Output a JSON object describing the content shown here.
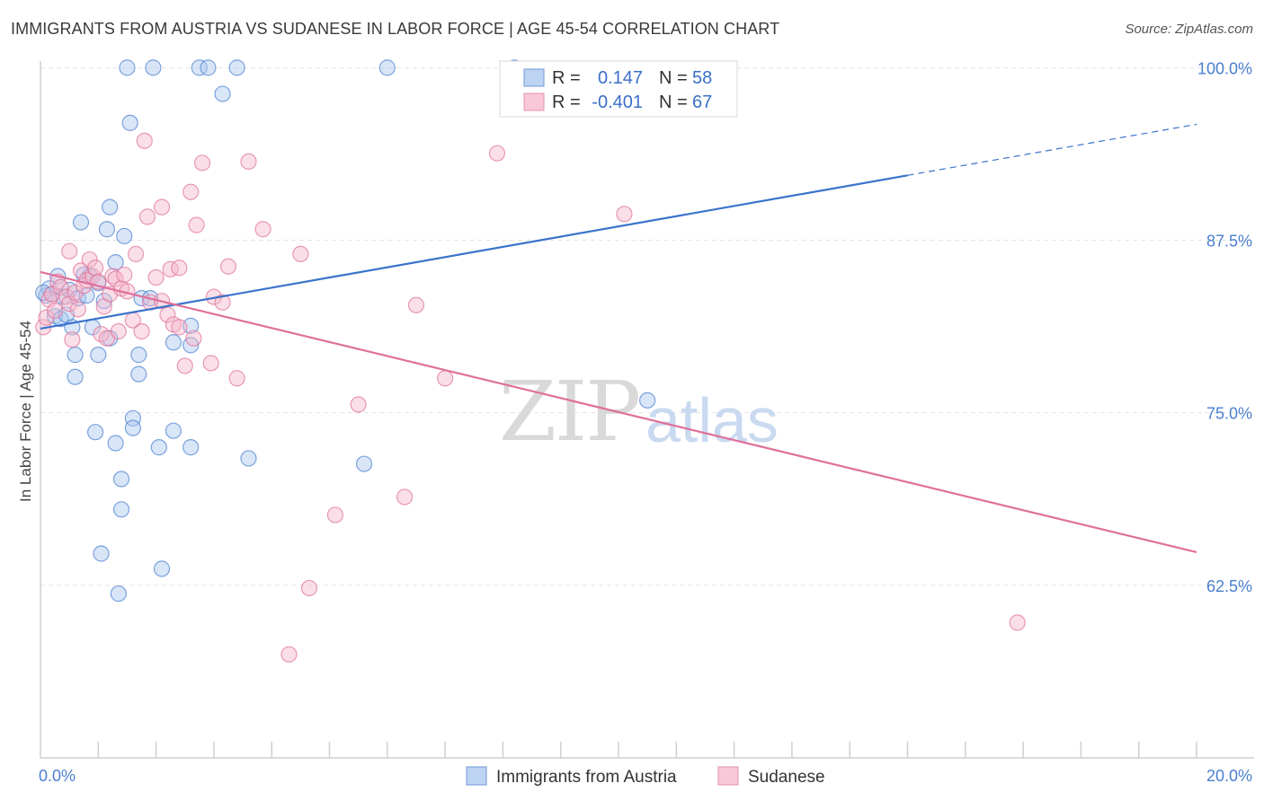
{
  "title": "IMMIGRANTS FROM AUSTRIA VS SUDANESE IN LABOR FORCE | AGE 45-54 CORRELATION CHART",
  "source": "Source: ZipAtlas.com",
  "watermark": {
    "zip": "ZIP",
    "atlas": "atlas"
  },
  "colors": {
    "blue": "#4a7fcf",
    "blue_fill": "#aac7ef",
    "pink": "#e07098",
    "pink_fill": "#f5b8cc",
    "grid": "#e3e3e3"
  },
  "legend_box": {
    "rows": [
      {
        "r_label": "R =",
        "r_value": "0.147",
        "n_label": "N =",
        "n_value": "58",
        "color": "blue"
      },
      {
        "r_label": "R =",
        "r_value": "-0.401",
        "n_label": "N =",
        "n_value": "67",
        "color": "pink"
      }
    ]
  },
  "bottom_legend": [
    {
      "label": "Immigrants from Austria",
      "color": "blue"
    },
    {
      "label": "Sudanese",
      "color": "pink"
    }
  ],
  "chart_data": {
    "type": "scatter",
    "title": "IMMIGRANTS FROM AUSTRIA VS SUDANESE IN LABOR FORCE | AGE 45-54 CORRELATION CHART",
    "xlabel": "",
    "ylabel": "In Labor Force | Age 45-54",
    "xlim": [
      0,
      20
    ],
    "ylim": [
      50,
      101
    ],
    "x_tick_labels": [
      {
        "value": 0,
        "label": "0.0%"
      },
      {
        "value": 20,
        "label": "20.0%"
      }
    ],
    "y_ticks": [
      {
        "value": 100,
        "label": "100.0%"
      },
      {
        "value": 87.5,
        "label": "87.5%"
      },
      {
        "value": 75,
        "label": "75.0%"
      },
      {
        "value": 62.5,
        "label": "62.5%"
      }
    ],
    "grid": true,
    "legend_position": "bottom",
    "series": [
      {
        "name": "Immigrants from Austria",
        "color": "blue",
        "trend": {
          "x0": 0,
          "y0": 81.1,
          "x1": 15,
          "y1": 92.2,
          "dashed_to_x": 20,
          "dashed_to_y": 95.9
        },
        "points": [
          [
            0.1,
            83.5
          ],
          [
            0.15,
            84.0
          ],
          [
            0.2,
            83.6
          ],
          [
            0.25,
            82.0
          ],
          [
            0.3,
            84.9
          ],
          [
            0.35,
            81.8
          ],
          [
            0.4,
            83.4
          ],
          [
            0.45,
            82.1
          ],
          [
            0.5,
            83.9
          ],
          [
            0.55,
            81.2
          ],
          [
            0.6,
            77.6
          ],
          [
            0.6,
            79.2
          ],
          [
            0.65,
            83.3
          ],
          [
            0.7,
            88.8
          ],
          [
            0.75,
            85.0
          ],
          [
            0.8,
            83.5
          ],
          [
            0.85,
            84.9
          ],
          [
            0.9,
            81.2
          ],
          [
            0.95,
            73.6
          ],
          [
            1.0,
            84.4
          ],
          [
            1.0,
            79.2
          ],
          [
            1.05,
            64.8
          ],
          [
            1.1,
            83.1
          ],
          [
            1.15,
            88.3
          ],
          [
            1.2,
            89.9
          ],
          [
            1.2,
            80.4
          ],
          [
            1.3,
            85.9
          ],
          [
            1.3,
            72.8
          ],
          [
            1.35,
            61.9
          ],
          [
            1.4,
            68.0
          ],
          [
            1.4,
            70.2
          ],
          [
            1.45,
            87.8
          ],
          [
            1.5,
            100
          ],
          [
            1.55,
            96.0
          ],
          [
            1.6,
            74.6
          ],
          [
            1.6,
            73.9
          ],
          [
            1.7,
            77.8
          ],
          [
            1.7,
            79.2
          ],
          [
            1.75,
            83.3
          ],
          [
            1.9,
            83.3
          ],
          [
            1.95,
            100
          ],
          [
            2.05,
            72.5
          ],
          [
            2.1,
            63.7
          ],
          [
            2.3,
            73.7
          ],
          [
            2.3,
            80.1
          ],
          [
            2.6,
            81.3
          ],
          [
            2.6,
            79.9
          ],
          [
            2.6,
            72.5
          ],
          [
            2.75,
            100
          ],
          [
            2.9,
            100
          ],
          [
            3.15,
            98.1
          ],
          [
            3.4,
            100
          ],
          [
            3.6,
            71.7
          ],
          [
            5.6,
            71.3
          ],
          [
            6.0,
            100
          ],
          [
            8.2,
            100
          ],
          [
            10.5,
            75.9
          ],
          [
            0.05,
            83.7
          ]
        ]
      },
      {
        "name": "Sudanese",
        "color": "pink",
        "trend": {
          "x0": 0,
          "y0": 85.2,
          "x1": 20,
          "y1": 64.9
        },
        "points": [
          [
            0.05,
            81.2
          ],
          [
            0.1,
            81.9
          ],
          [
            0.15,
            83.2
          ],
          [
            0.2,
            83.6
          ],
          [
            0.25,
            82.4
          ],
          [
            0.3,
            84.5
          ],
          [
            0.35,
            84.1
          ],
          [
            0.45,
            83.4
          ],
          [
            0.5,
            82.9
          ],
          [
            0.5,
            86.7
          ],
          [
            0.55,
            80.3
          ],
          [
            0.6,
            83.7
          ],
          [
            0.65,
            82.5
          ],
          [
            0.7,
            85.3
          ],
          [
            0.75,
            84.2
          ],
          [
            0.8,
            84.6
          ],
          [
            0.85,
            86.1
          ],
          [
            0.9,
            84.9
          ],
          [
            0.95,
            85.5
          ],
          [
            1.0,
            84.5
          ],
          [
            1.05,
            80.7
          ],
          [
            1.1,
            82.7
          ],
          [
            1.15,
            80.4
          ],
          [
            1.2,
            83.6
          ],
          [
            1.25,
            84.9
          ],
          [
            1.3,
            84.7
          ],
          [
            1.35,
            80.9
          ],
          [
            1.4,
            84.0
          ],
          [
            1.45,
            85.0
          ],
          [
            1.5,
            83.8
          ],
          [
            1.6,
            81.7
          ],
          [
            1.65,
            86.5
          ],
          [
            1.75,
            80.9
          ],
          [
            1.8,
            94.7
          ],
          [
            1.85,
            89.2
          ],
          [
            1.9,
            83.0
          ],
          [
            2.0,
            84.8
          ],
          [
            2.1,
            83.1
          ],
          [
            2.1,
            89.9
          ],
          [
            2.2,
            82.1
          ],
          [
            2.25,
            85.4
          ],
          [
            2.3,
            81.4
          ],
          [
            2.4,
            81.2
          ],
          [
            2.4,
            85.5
          ],
          [
            2.5,
            78.4
          ],
          [
            2.6,
            91.0
          ],
          [
            2.65,
            80.4
          ],
          [
            2.7,
            88.6
          ],
          [
            2.8,
            93.1
          ],
          [
            2.95,
            78.6
          ],
          [
            3.0,
            83.4
          ],
          [
            3.15,
            83.0
          ],
          [
            3.25,
            85.6
          ],
          [
            3.4,
            77.5
          ],
          [
            3.6,
            93.2
          ],
          [
            3.85,
            88.3
          ],
          [
            4.3,
            57.5
          ],
          [
            4.5,
            86.5
          ],
          [
            4.65,
            62.3
          ],
          [
            5.1,
            67.6
          ],
          [
            5.5,
            75.6
          ],
          [
            6.3,
            68.9
          ],
          [
            6.5,
            82.8
          ],
          [
            7.0,
            77.5
          ],
          [
            7.9,
            93.8
          ],
          [
            10.1,
            89.4
          ],
          [
            16.9,
            59.8
          ]
        ]
      }
    ]
  }
}
